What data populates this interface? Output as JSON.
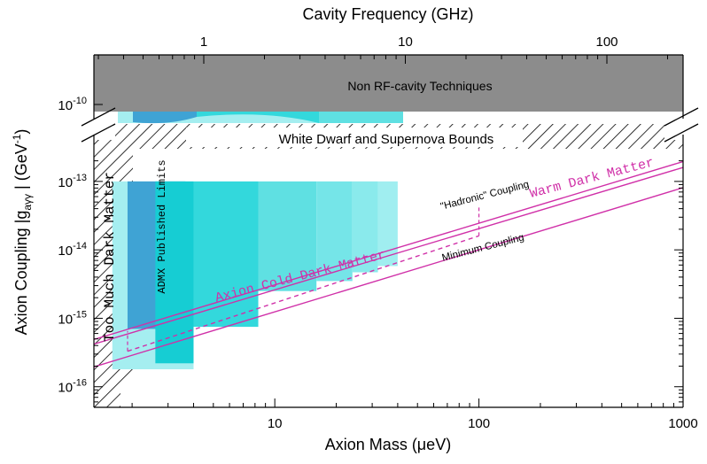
{
  "chart_data": {
    "type": "area",
    "title": "",
    "xlabel": "Axion Mass (μeV)",
    "ylabel": "Axion Coupling |g",
    "ylabel_sub": "aγγ",
    "ylabel_tail": " | (GeV",
    "ylabel_sup": "-1",
    "ylabel_end": ")",
    "top_axis_label": "Cavity Frequency (GHz)",
    "x_scale": "log",
    "y_scale": "log",
    "x_range": [
      1.3,
      1000
    ],
    "y_range_lower": [
      5e-17,
      3e-13
    ],
    "y_upper_tick": "10",
    "x_ticks": [
      {
        "value": 10,
        "label": "10"
      },
      {
        "value": 100,
        "label": "100"
      },
      {
        "value": 1000,
        "label": "1000"
      }
    ],
    "top_ticks": [
      {
        "value": 1,
        "label": "1"
      },
      {
        "value": 10,
        "label": "10"
      },
      {
        "value": 100,
        "label": "100"
      }
    ],
    "y_ticks": [
      {
        "value": 1e-13,
        "exp": "-13"
      },
      {
        "value": 1e-14,
        "exp": "-14"
      },
      {
        "value": 1e-15,
        "exp": "-15"
      },
      {
        "value": 1e-16,
        "exp": "-16"
      }
    ],
    "y_upper_exp": "-10",
    "annotations": {
      "non_rf": "Non RF-cavity Techniques",
      "wd_sn": "White Dwarf and Supernova Bounds",
      "too_much_dm": "Too Much Dark Matter",
      "admx": "ADMX Published Limits",
      "cold_dm": "Axion Cold Dark Matter",
      "warm_dm": "Warm Dark Matter",
      "hadronic": "\"Hadronic\" Coupling",
      "minimum": "Minimum Coupling"
    },
    "colors": {
      "non_rf_band": "#8c8c8c",
      "admx": "#3fa3d4",
      "cyan_dark": "#16cdd3",
      "cyan_mid": "#33d8dc",
      "cyan_light": "#5fe0e2",
      "cyan_pale": "#a5eef0",
      "dm_lines": "#d030a8"
    },
    "exclusion_regions": [
      {
        "name": "ADMX Published Limits",
        "mass_range": [
          1.9,
          3.65
        ],
        "coupling_range": [
          7e-16,
          1e-13
        ]
      },
      {
        "name": "dark-cyan",
        "mass_range": [
          2.6,
          4.0
        ],
        "coupling_range": [
          2.2e-16,
          1e-13
        ]
      },
      {
        "name": "cyan-1",
        "mass_range": [
          4.0,
          8.3
        ],
        "coupling_range": [
          7.5e-16,
          1e-13
        ]
      },
      {
        "name": "cyan-2",
        "mass_range": [
          8.3,
          16
        ],
        "coupling_range": [
          2.5e-15,
          1e-13
        ]
      },
      {
        "name": "cyan-3",
        "mass_range": [
          16,
          24
        ],
        "coupling_range": [
          3.5e-15,
          1e-13
        ]
      },
      {
        "name": "cyan-4",
        "mass_range": [
          24,
          32
        ],
        "coupling_range": [
          4.7e-15,
          1e-13
        ]
      },
      {
        "name": "cyan-5",
        "mass_range": [
          32,
          40
        ],
        "coupling_range": [
          5.8e-15,
          1e-13
        ]
      },
      {
        "name": "pale-left",
        "mass_range": [
          1.6,
          1.9
        ],
        "coupling_range": [
          1.8e-16,
          1e-13
        ]
      }
    ],
    "dm_lines": [
      {
        "name": "hadronic",
        "points": [
          [
            1.3,
            4.9e-16
          ],
          [
            1000,
            1.95e-13
          ]
        ]
      },
      {
        "name": "cold_dm_lower",
        "points": [
          [
            1.3,
            4.2e-16
          ],
          [
            1000,
            1.6e-13
          ]
        ]
      },
      {
        "name": "minimum",
        "points": [
          [
            1.3,
            1.95e-16
          ],
          [
            1000,
            8.1e-14
          ]
        ]
      },
      {
        "name": "cold_dm_dashed",
        "points": [
          [
            1.9,
            3.3e-16
          ],
          [
            100,
            1.6e-14
          ]
        ]
      }
    ]
  }
}
